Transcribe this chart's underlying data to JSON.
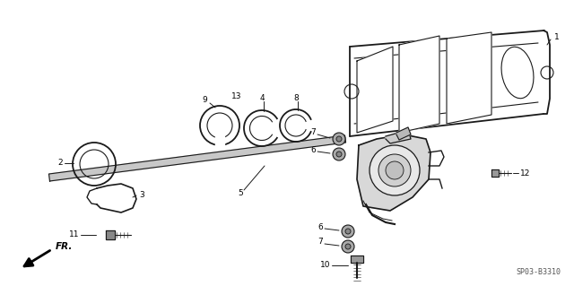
{
  "bg_color": "#ffffff",
  "line_color": "#1a1a1a",
  "fig_width": 6.4,
  "fig_height": 3.19,
  "dpi": 100,
  "diagram_id": "SP03-B3310",
  "fr_label": "FR."
}
